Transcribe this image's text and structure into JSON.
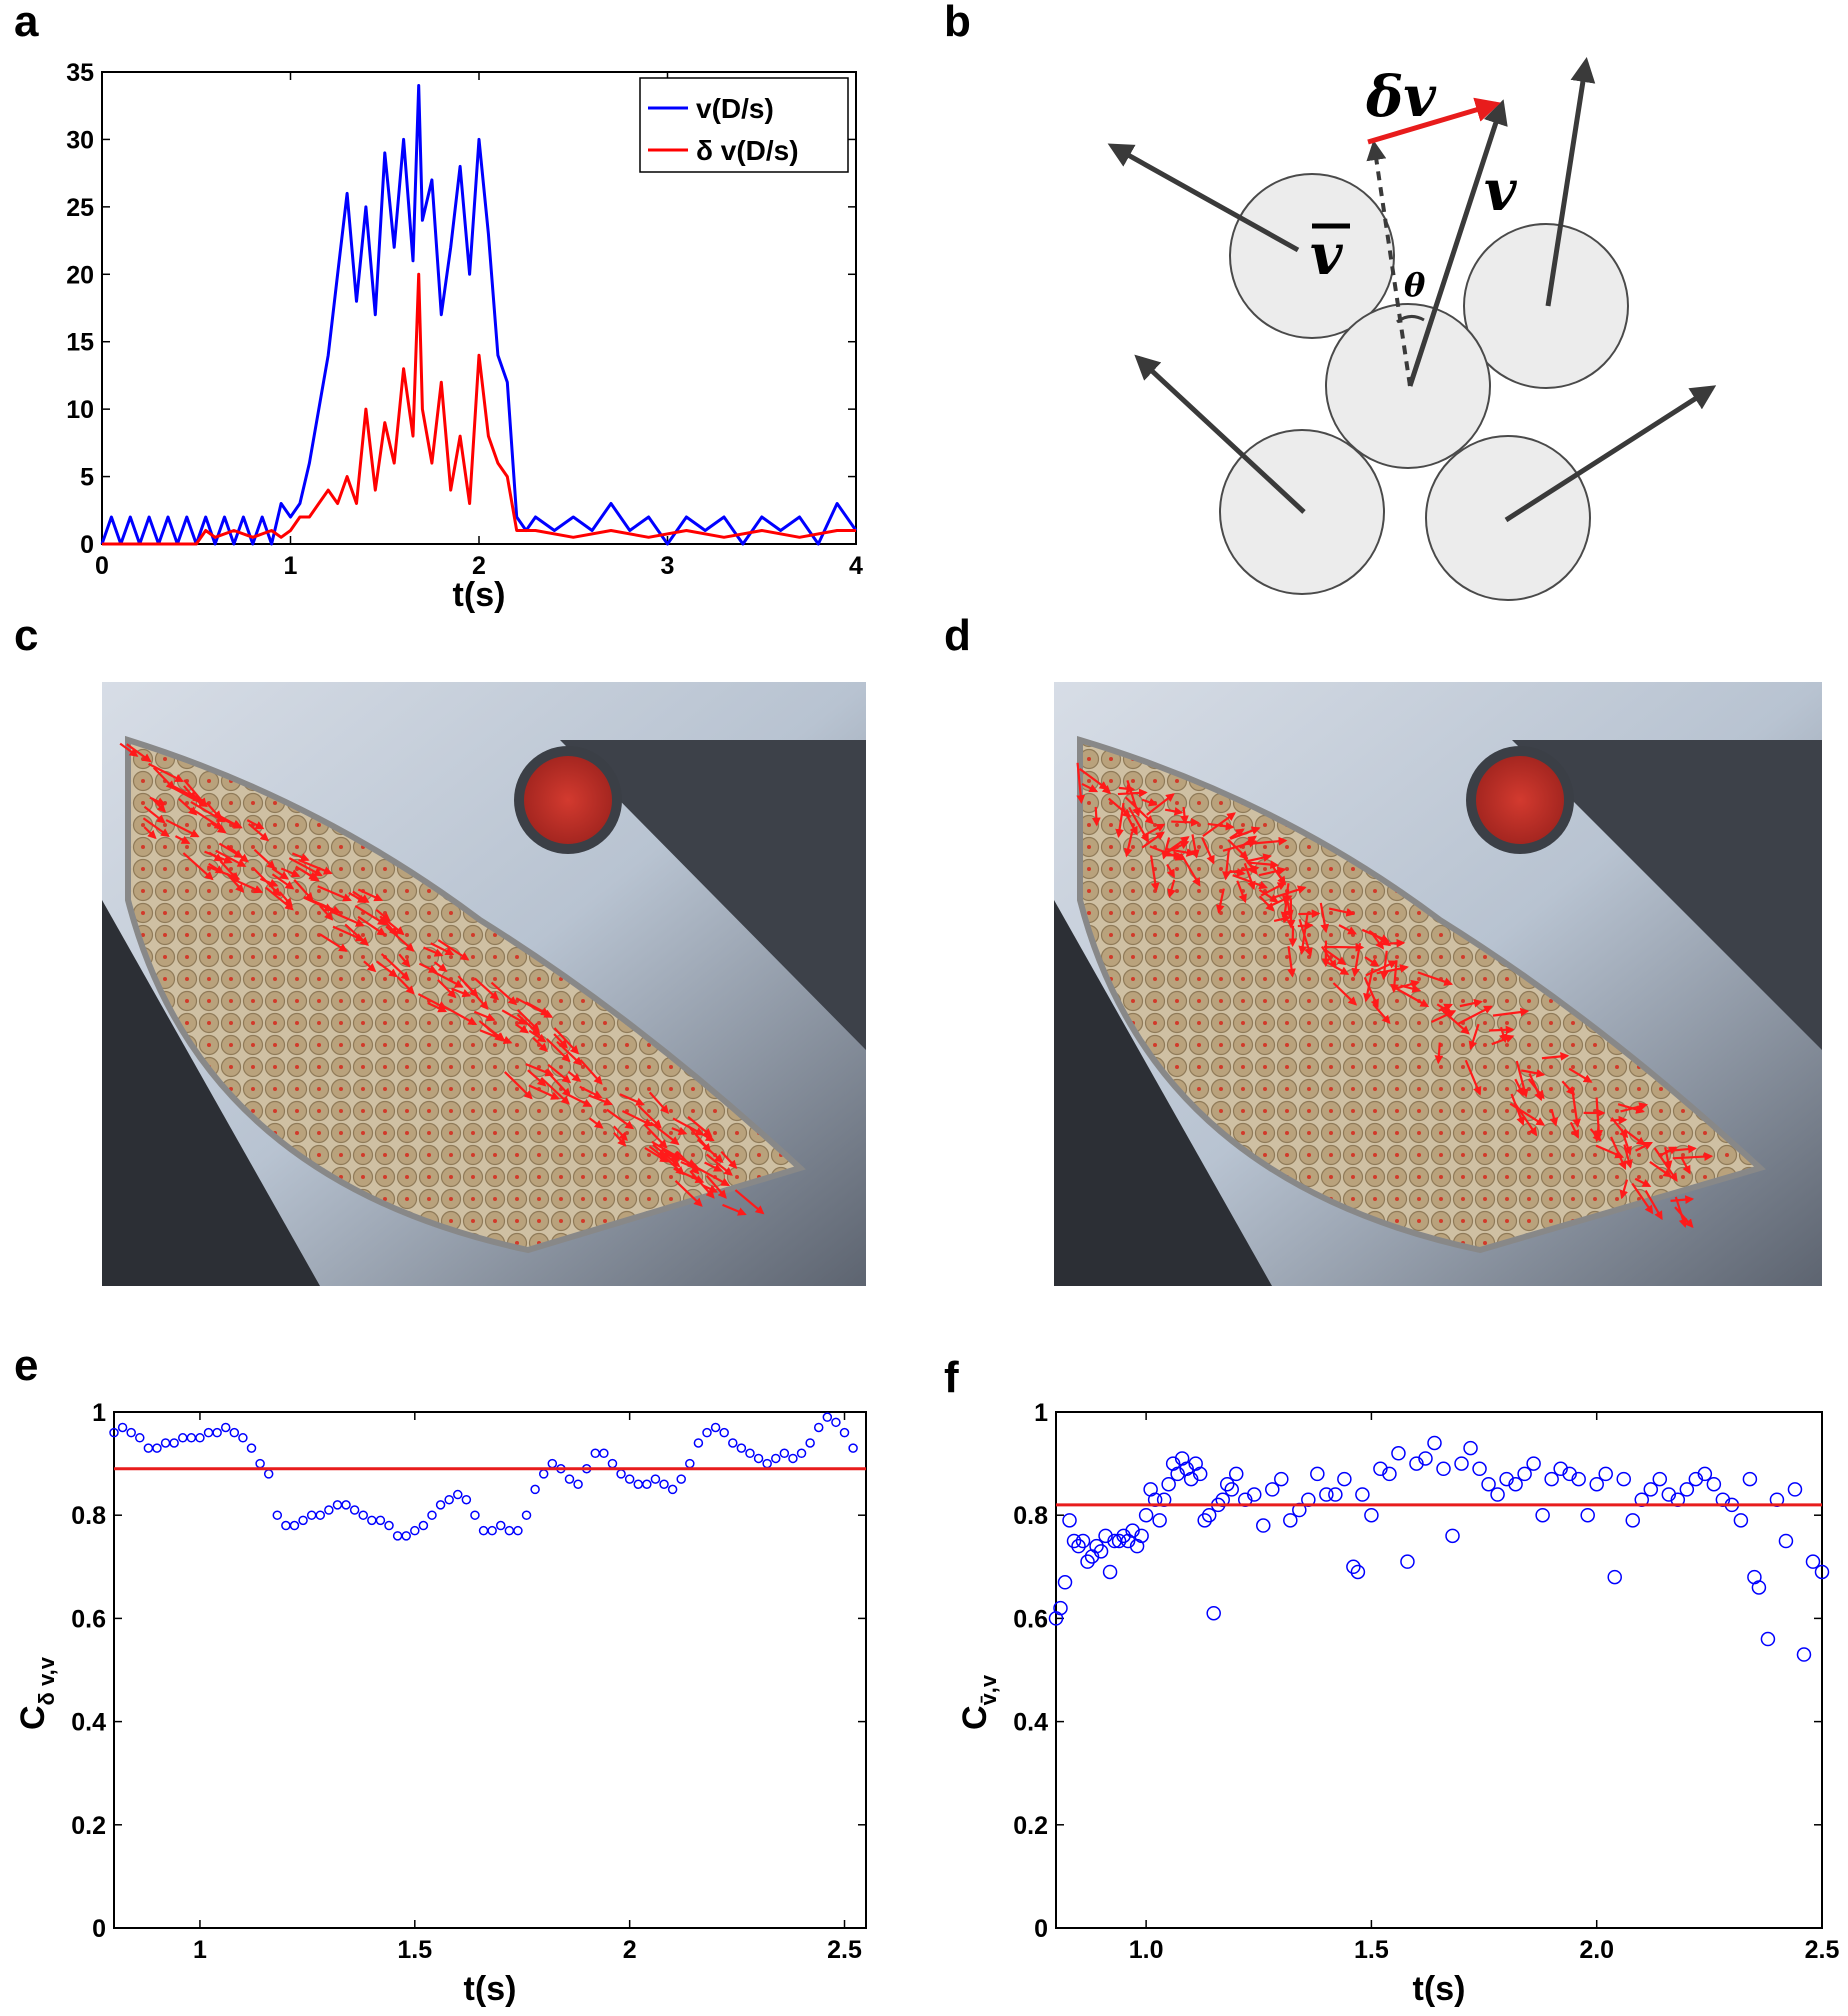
{
  "panels": {
    "a": "a",
    "b": "b",
    "c": "c",
    "d": "d",
    "e": "e",
    "f": "f"
  },
  "diagram_b": {
    "delta_v": "δv",
    "v": "v",
    "vbar": "v",
    "theta": "θ",
    "colors": {
      "circle_fill": "#ececec",
      "arrow": "#3a3a3a",
      "delta_arrow": "#e81c1c"
    }
  },
  "photos": {
    "c": {
      "arrow_pattern": "aligned",
      "description_icon": "granular-flow-photo"
    },
    "d": {
      "arrow_pattern": "fluctuating",
      "description_icon": "granular-flow-photo"
    }
  },
  "chart_data": [
    {
      "id": "a",
      "type": "line",
      "xlabel": "t(s)",
      "ylabel": "",
      "xlim": [
        0,
        4
      ],
      "ylim": [
        0,
        35
      ],
      "xticks": [
        "0",
        "1",
        "2",
        "3",
        "4"
      ],
      "yticks": [
        "0",
        "5",
        "10",
        "15",
        "20",
        "25",
        "30",
        "35"
      ],
      "legend_position": "top-right",
      "series": [
        {
          "name": "v(D/s)",
          "color": "#0000ff",
          "x": [
            0,
            0.05,
            0.1,
            0.15,
            0.2,
            0.25,
            0.3,
            0.35,
            0.4,
            0.45,
            0.5,
            0.55,
            0.6,
            0.65,
            0.7,
            0.75,
            0.8,
            0.85,
            0.9,
            0.95,
            1.0,
            1.05,
            1.1,
            1.15,
            1.2,
            1.25,
            1.3,
            1.35,
            1.4,
            1.45,
            1.5,
            1.55,
            1.6,
            1.65,
            1.68,
            1.7,
            1.75,
            1.8,
            1.85,
            1.9,
            1.95,
            2.0,
            2.05,
            2.1,
            2.15,
            2.2,
            2.25,
            2.3,
            2.4,
            2.5,
            2.6,
            2.7,
            2.8,
            2.9,
            3.0,
            3.1,
            3.2,
            3.3,
            3.4,
            3.5,
            3.6,
            3.7,
            3.8,
            3.9,
            4.0
          ],
          "values": [
            0,
            2,
            0,
            2,
            0,
            2,
            0,
            2,
            0,
            2,
            0,
            2,
            0,
            2,
            0,
            2,
            0,
            2,
            0,
            3,
            2,
            3,
            6,
            10,
            14,
            20,
            26,
            18,
            25,
            17,
            29,
            22,
            30,
            21,
            34,
            24,
            27,
            17,
            22,
            28,
            20,
            30,
            23,
            14,
            12,
            2,
            1,
            2,
            1,
            2,
            1,
            3,
            1,
            2,
            0,
            2,
            1,
            2,
            0,
            2,
            1,
            2,
            0,
            3,
            1
          ]
        },
        {
          "name": "δ v(D/s)",
          "color": "#ff0000",
          "x": [
            0,
            0.5,
            0.55,
            0.6,
            0.7,
            0.8,
            0.9,
            0.95,
            1.0,
            1.05,
            1.1,
            1.15,
            1.2,
            1.25,
            1.3,
            1.35,
            1.4,
            1.45,
            1.5,
            1.55,
            1.6,
            1.65,
            1.68,
            1.7,
            1.75,
            1.8,
            1.85,
            1.9,
            1.95,
            2.0,
            2.05,
            2.1,
            2.15,
            2.2,
            2.3,
            2.5,
            2.7,
            2.9,
            3.1,
            3.3,
            3.5,
            3.7,
            3.9,
            4.0
          ],
          "values": [
            0,
            0,
            1,
            0.5,
            1,
            0.5,
            1,
            0.5,
            1,
            2,
            2,
            3,
            4,
            3,
            5,
            3,
            10,
            4,
            9,
            6,
            13,
            8,
            20,
            10,
            6,
            12,
            4,
            8,
            3,
            14,
            8,
            6,
            5,
            1,
            1,
            0.5,
            1,
            0.5,
            1,
            0.5,
            1,
            0.5,
            1,
            1
          ]
        }
      ]
    },
    {
      "id": "e",
      "type": "scatter",
      "xlabel": "t(s)",
      "ylabel": "C",
      "ylabel_sub": "δ v,v",
      "xlim": [
        0.8,
        2.55
      ],
      "ylim": [
        0,
        1
      ],
      "xticks": [
        "1",
        "1.5",
        "2",
        "2.5"
      ],
      "yticks": [
        "0",
        "0.2",
        "0.4",
        "0.6",
        "0.8",
        "1"
      ],
      "marker": "small-open-circle",
      "color": "#0000ff",
      "mean_line": {
        "value": 0.89,
        "color": "#e81c1c"
      },
      "x": [
        0.8,
        0.82,
        0.84,
        0.86,
        0.88,
        0.9,
        0.92,
        0.94,
        0.96,
        0.98,
        1.0,
        1.02,
        1.04,
        1.06,
        1.08,
        1.1,
        1.12,
        1.14,
        1.16,
        1.18,
        1.2,
        1.22,
        1.24,
        1.26,
        1.28,
        1.3,
        1.32,
        1.34,
        1.36,
        1.38,
        1.4,
        1.42,
        1.44,
        1.46,
        1.48,
        1.5,
        1.52,
        1.54,
        1.56,
        1.58,
        1.6,
        1.62,
        1.64,
        1.66,
        1.68,
        1.7,
        1.72,
        1.74,
        1.76,
        1.78,
        1.8,
        1.82,
        1.84,
        1.86,
        1.88,
        1.9,
        1.92,
        1.94,
        1.96,
        1.98,
        2.0,
        2.02,
        2.04,
        2.06,
        2.08,
        2.1,
        2.12,
        2.14,
        2.16,
        2.18,
        2.2,
        2.22,
        2.24,
        2.26,
        2.28,
        2.3,
        2.32,
        2.34,
        2.36,
        2.38,
        2.4,
        2.42,
        2.44,
        2.46,
        2.48,
        2.5,
        2.52
      ],
      "values": [
        0.96,
        0.97,
        0.96,
        0.95,
        0.93,
        0.93,
        0.94,
        0.94,
        0.95,
        0.95,
        0.95,
        0.96,
        0.96,
        0.97,
        0.96,
        0.95,
        0.93,
        0.9,
        0.88,
        0.8,
        0.78,
        0.78,
        0.79,
        0.8,
        0.8,
        0.81,
        0.82,
        0.82,
        0.81,
        0.8,
        0.79,
        0.79,
        0.78,
        0.76,
        0.76,
        0.77,
        0.78,
        0.8,
        0.82,
        0.83,
        0.84,
        0.83,
        0.8,
        0.77,
        0.77,
        0.78,
        0.77,
        0.77,
        0.8,
        0.85,
        0.88,
        0.9,
        0.89,
        0.87,
        0.86,
        0.89,
        0.92,
        0.92,
        0.9,
        0.88,
        0.87,
        0.86,
        0.86,
        0.87,
        0.86,
        0.85,
        0.87,
        0.9,
        0.94,
        0.96,
        0.97,
        0.96,
        0.94,
        0.93,
        0.92,
        0.91,
        0.9,
        0.91,
        0.92,
        0.91,
        0.92,
        0.94,
        0.97,
        0.99,
        0.98,
        0.96,
        0.93
      ]
    },
    {
      "id": "f",
      "type": "scatter",
      "xlabel": "t(s)",
      "ylabel": "C",
      "ylabel_sub": "v̄,v",
      "xlim": [
        0.8,
        2.5
      ],
      "ylim": [
        0,
        1
      ],
      "xticks": [
        "1.0",
        "1.5",
        "2.0",
        "2.5"
      ],
      "yticks": [
        "0",
        "0.2",
        "0.4",
        "0.6",
        "0.8",
        "1"
      ],
      "marker": "open-circle",
      "color": "#0000ff",
      "mean_line": {
        "value": 0.82,
        "color": "#e81c1c"
      },
      "x": [
        0.8,
        0.81,
        0.82,
        0.83,
        0.84,
        0.85,
        0.86,
        0.87,
        0.88,
        0.89,
        0.9,
        0.91,
        0.92,
        0.93,
        0.94,
        0.95,
        0.96,
        0.97,
        0.98,
        0.99,
        1.0,
        1.01,
        1.02,
        1.03,
        1.04,
        1.05,
        1.06,
        1.07,
        1.08,
        1.09,
        1.1,
        1.11,
        1.12,
        1.13,
        1.14,
        1.15,
        1.16,
        1.17,
        1.18,
        1.19,
        1.2,
        1.22,
        1.24,
        1.26,
        1.28,
        1.3,
        1.32,
        1.34,
        1.36,
        1.38,
        1.4,
        1.42,
        1.44,
        1.46,
        1.47,
        1.48,
        1.5,
        1.52,
        1.54,
        1.56,
        1.58,
        1.6,
        1.62,
        1.64,
        1.66,
        1.68,
        1.7,
        1.72,
        1.74,
        1.76,
        1.78,
        1.8,
        1.82,
        1.84,
        1.86,
        1.88,
        1.9,
        1.92,
        1.94,
        1.96,
        1.98,
        2.0,
        2.02,
        2.04,
        2.06,
        2.08,
        2.1,
        2.12,
        2.14,
        2.16,
        2.18,
        2.2,
        2.22,
        2.24,
        2.26,
        2.28,
        2.3,
        2.32,
        2.34,
        2.35,
        2.36,
        2.38,
        2.4,
        2.42,
        2.44,
        2.46,
        2.48,
        2.5
      ],
      "values": [
        0.6,
        0.62,
        0.67,
        0.79,
        0.75,
        0.74,
        0.75,
        0.71,
        0.72,
        0.74,
        0.73,
        0.76,
        0.69,
        0.75,
        0.75,
        0.76,
        0.75,
        0.77,
        0.74,
        0.76,
        0.8,
        0.85,
        0.83,
        0.79,
        0.83,
        0.86,
        0.9,
        0.88,
        0.91,
        0.89,
        0.87,
        0.9,
        0.88,
        0.79,
        0.8,
        0.61,
        0.82,
        0.83,
        0.86,
        0.85,
        0.88,
        0.83,
        0.84,
        0.78,
        0.85,
        0.87,
        0.79,
        0.81,
        0.83,
        0.88,
        0.84,
        0.84,
        0.87,
        0.7,
        0.69,
        0.84,
        0.8,
        0.89,
        0.88,
        0.92,
        0.71,
        0.9,
        0.91,
        0.94,
        0.89,
        0.76,
        0.9,
        0.93,
        0.89,
        0.86,
        0.84,
        0.87,
        0.86,
        0.88,
        0.9,
        0.8,
        0.87,
        0.89,
        0.88,
        0.87,
        0.8,
        0.86,
        0.88,
        0.68,
        0.87,
        0.79,
        0.83,
        0.85,
        0.87,
        0.84,
        0.83,
        0.85,
        0.87,
        0.88,
        0.86,
        0.83,
        0.82,
        0.79,
        0.87,
        0.68,
        0.66,
        0.56,
        0.83,
        0.75,
        0.85,
        0.53,
        0.71,
        0.69
      ]
    }
  ]
}
